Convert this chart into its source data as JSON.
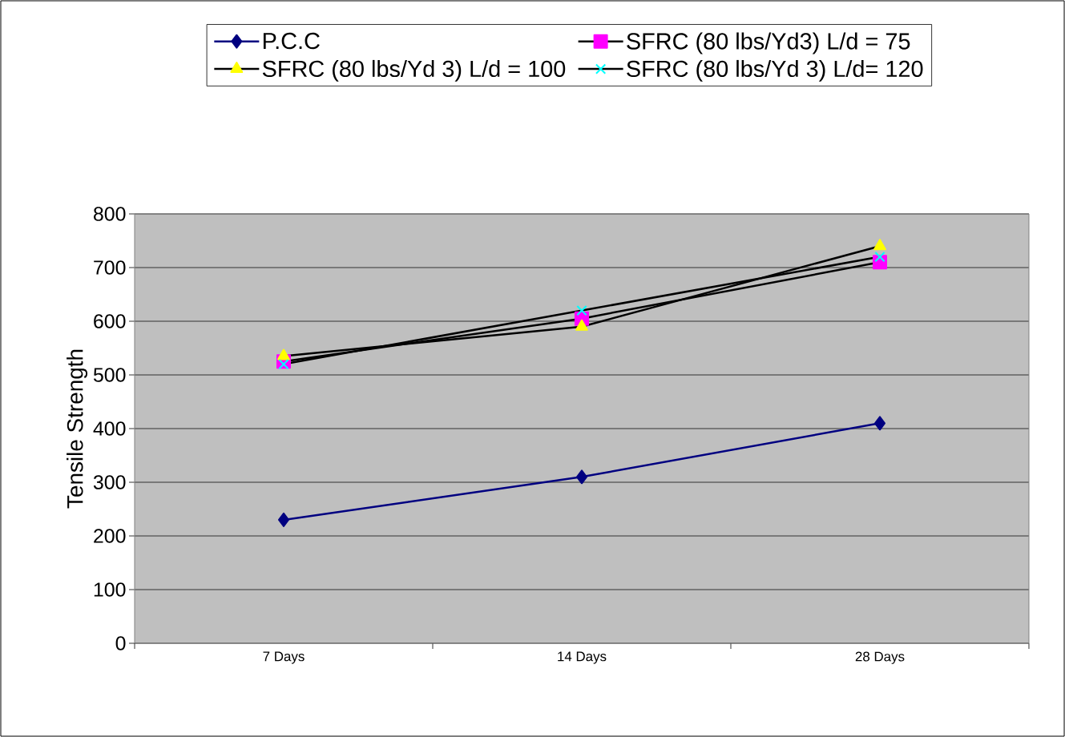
{
  "chart_data": {
    "type": "line",
    "ylabel": "Tensile Strength",
    "categories": [
      "7 Days",
      "14 Days",
      "28 Days"
    ],
    "ylim": [
      0,
      800
    ],
    "yticks": [
      0,
      100,
      200,
      300,
      400,
      500,
      600,
      700,
      800
    ],
    "grid": "y",
    "legend": "top",
    "series": [
      {
        "name": "P.C.C",
        "color": "#000080",
        "marker": "diamond",
        "values": [
          230,
          310,
          410
        ]
      },
      {
        "name": "SFRC (80 lbs/Yd3) L/d = 75",
        "color": "#ff00ff",
        "marker": "square",
        "values": [
          525,
          605,
          710
        ]
      },
      {
        "name": "SFRC (80 lbs/Yd 3) L/d = 100",
        "color": "#ffff00",
        "marker": "triangle",
        "values": [
          535,
          590,
          740
        ]
      },
      {
        "name": "SFRC (80 lbs/Yd 3) L/d= 120",
        "color": "#00ffff",
        "marker": "cross",
        "values": [
          520,
          620,
          720
        ]
      }
    ]
  }
}
